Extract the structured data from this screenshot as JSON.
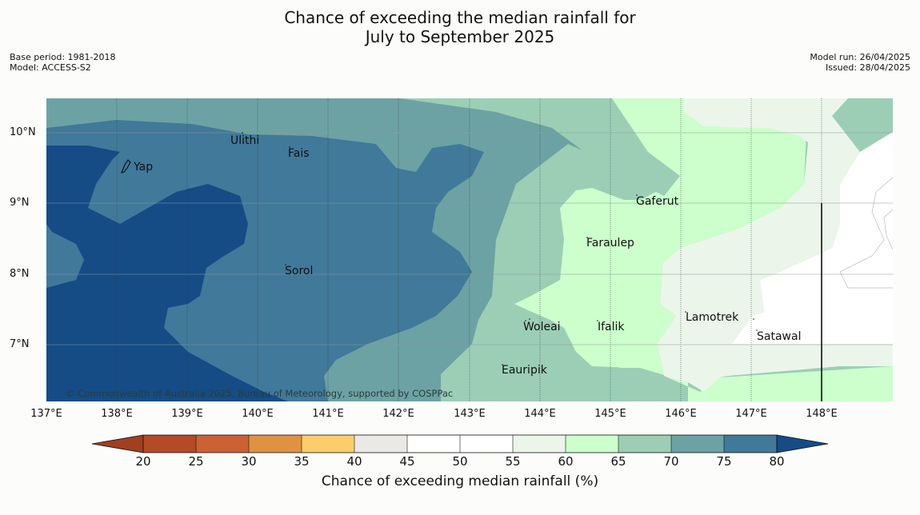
{
  "header": {
    "title_line1": "Chance of exceeding the median rainfall for",
    "title_line2": "July to September 2025",
    "base_period": "Base period: 1981-2018",
    "model": "Model: ACCESS-S2",
    "model_run": "Model run: 26/04/2025",
    "issued": "Issued: 28/04/2025"
  },
  "map": {
    "x_ticks": [
      "137°E",
      "138°E",
      "139°E",
      "140°E",
      "141°E",
      "142°E",
      "143°E",
      "144°E",
      "145°E",
      "146°E",
      "147°E",
      "148°E"
    ],
    "y_ticks": [
      "10°N",
      "9°N",
      "8°N",
      "7°N"
    ],
    "places": [
      "Yap",
      "Ulithi",
      "Fais",
      "Sorol",
      "Gaferut",
      "Faraulep",
      "Woleai",
      "Ifalik",
      "Lamotrek",
      "Satawal",
      "Eauripik"
    ],
    "copyright": "© Commonwealth of Australia 2025, Bureau of Meteorology, supported by COSPPac"
  },
  "colorbar": {
    "label": "Chance of exceeding median rainfall (%)",
    "ticks": [
      "20",
      "25",
      "30",
      "35",
      "40",
      "45",
      "50",
      "55",
      "60",
      "65",
      "70",
      "75",
      "80"
    ],
    "colors": {
      "lt20": "#a0401f",
      "20-25": "#b44a26",
      "25-30": "#cc6133",
      "30-35": "#e09244",
      "35-40": "#fdcd6b",
      "40-45": "#ebe9e5",
      "45-50": "#ffffff",
      "50-55": "#ffffff",
      "55-60": "#ecf5ea",
      "60-65": "#ccffcc",
      "65-70": "#9cceb6",
      "70-75": "#6da2a4",
      "75-80": "#41799a",
      "gt80": "#154c86"
    }
  }
}
